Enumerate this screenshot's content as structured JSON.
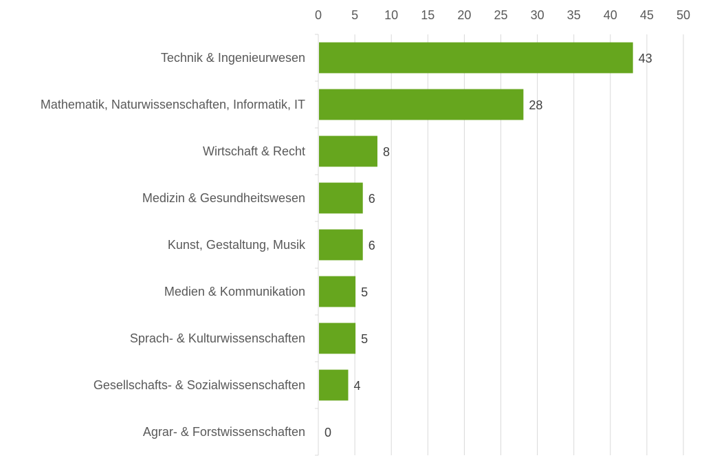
{
  "chart_data": {
    "type": "bar",
    "orientation": "horizontal",
    "title": "",
    "xlabel": "",
    "ylabel": "",
    "xlim": [
      0,
      50
    ],
    "x_ticks": [
      0,
      5,
      10,
      15,
      20,
      25,
      30,
      35,
      40,
      45,
      50
    ],
    "x_axis_position": "top",
    "grid": true,
    "legend": "none",
    "bar_color": "#66a61e",
    "categories": [
      "Technik & Ingenieurwesen",
      "Mathematik, Naturwissenschaften, Informatik, IT",
      "Wirtschaft & Recht",
      "Medizin & Gesundheitswesen",
      "Kunst, Gestaltung, Musik",
      "Medien & Kommunikation",
      "Sprach- & Kulturwissenschaften",
      "Gesellschafts- & Sozialwissenschaften",
      "Agrar- & Forstwissenschaften"
    ],
    "values": [
      43,
      28,
      8,
      6,
      6,
      5,
      5,
      4,
      0
    ]
  }
}
